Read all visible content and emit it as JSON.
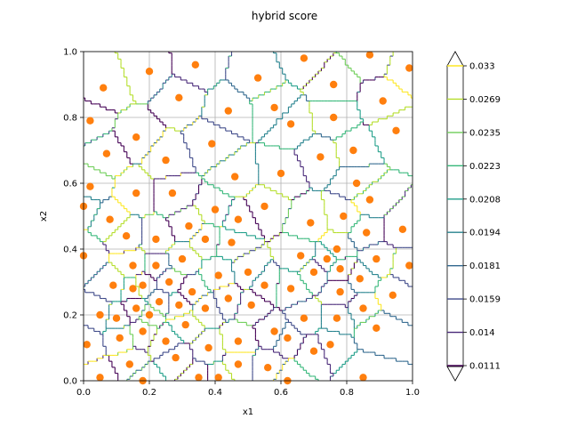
{
  "chart_data": {
    "type": "contour",
    "title": "hybrid score",
    "xlabel": "x1",
    "ylabel": "x2",
    "xlim": [
      0,
      1
    ],
    "ylim": [
      0,
      1
    ],
    "x_ticks": [
      "0.0",
      "0.2",
      "0.4",
      "0.6",
      "0.8",
      "1.0"
    ],
    "y_ticks": [
      "0.0",
      "0.2",
      "0.4",
      "0.6",
      "0.8",
      "1.0"
    ],
    "grid": true,
    "colorbar": {
      "extend": "both",
      "levels": [
        "0.033",
        "0.0269",
        "0.0235",
        "0.0223",
        "0.0208",
        "0.0194",
        "0.0181",
        "0.0159",
        "0.014",
        "0.0111"
      ],
      "colors": [
        "#fde725",
        "#b5de2b",
        "#6ece58",
        "#35b779",
        "#1f9e89",
        "#26828e",
        "#31688e",
        "#3e4989",
        "#482878",
        "#440154"
      ]
    },
    "scatter": {
      "color": "#ff7f0e",
      "points": [
        [
          0.06,
          0.89
        ],
        [
          0.2,
          0.94
        ],
        [
          0.34,
          0.96
        ],
        [
          0.53,
          0.92
        ],
        [
          0.67,
          0.98
        ],
        [
          0.87,
          0.99
        ],
        [
          0.99,
          0.95
        ],
        [
          0.02,
          0.79
        ],
        [
          0.29,
          0.86
        ],
        [
          0.44,
          0.82
        ],
        [
          0.58,
          0.83
        ],
        [
          0.76,
          0.9
        ],
        [
          0.91,
          0.85
        ],
        [
          0.16,
          0.74
        ],
        [
          0.39,
          0.72
        ],
        [
          0.63,
          0.78
        ],
        [
          0.76,
          0.8
        ],
        [
          0.95,
          0.76
        ],
        [
          0.07,
          0.69
        ],
        [
          0.25,
          0.67
        ],
        [
          0.72,
          0.68
        ],
        [
          0.82,
          0.7
        ],
        [
          0.02,
          0.59
        ],
        [
          0.46,
          0.62
        ],
        [
          0.6,
          0.63
        ],
        [
          0.83,
          0.6
        ],
        [
          0.16,
          0.57
        ],
        [
          0.27,
          0.57
        ],
        [
          0.87,
          0.55
        ],
        [
          0.0,
          0.53
        ],
        [
          0.4,
          0.52
        ],
        [
          0.55,
          0.53
        ],
        [
          0.08,
          0.49
        ],
        [
          0.32,
          0.47
        ],
        [
          0.47,
          0.49
        ],
        [
          0.69,
          0.48
        ],
        [
          0.79,
          0.5
        ],
        [
          0.13,
          0.44
        ],
        [
          0.22,
          0.43
        ],
        [
          0.37,
          0.43
        ],
        [
          0.45,
          0.42
        ],
        [
          0.86,
          0.45
        ],
        [
          0.97,
          0.46
        ],
        [
          0.0,
          0.38
        ],
        [
          0.66,
          0.38
        ],
        [
          0.77,
          0.4
        ],
        [
          0.3,
          0.37
        ],
        [
          0.74,
          0.37
        ],
        [
          0.89,
          0.37
        ],
        [
          0.15,
          0.35
        ],
        [
          0.22,
          0.35
        ],
        [
          0.5,
          0.33
        ],
        [
          0.41,
          0.32
        ],
        [
          0.7,
          0.33
        ],
        [
          0.78,
          0.34
        ],
        [
          0.99,
          0.35
        ],
        [
          0.09,
          0.29
        ],
        [
          0.18,
          0.29
        ],
        [
          0.26,
          0.3
        ],
        [
          0.55,
          0.29
        ],
        [
          0.63,
          0.28
        ],
        [
          0.84,
          0.31
        ],
        [
          0.15,
          0.28
        ],
        [
          0.33,
          0.27
        ],
        [
          0.44,
          0.25
        ],
        [
          0.78,
          0.27
        ],
        [
          0.94,
          0.26
        ],
        [
          0.23,
          0.24
        ],
        [
          0.29,
          0.23
        ],
        [
          0.37,
          0.22
        ],
        [
          0.51,
          0.23
        ],
        [
          0.16,
          0.22
        ],
        [
          0.85,
          0.22
        ],
        [
          0.05,
          0.2
        ],
        [
          0.1,
          0.19
        ],
        [
          0.2,
          0.2
        ],
        [
          0.31,
          0.17
        ],
        [
          0.58,
          0.15
        ],
        [
          0.67,
          0.19
        ],
        [
          0.77,
          0.19
        ],
        [
          0.89,
          0.16
        ],
        [
          0.18,
          0.15
        ],
        [
          0.01,
          0.11
        ],
        [
          0.11,
          0.13
        ],
        [
          0.25,
          0.12
        ],
        [
          0.38,
          0.1
        ],
        [
          0.47,
          0.12
        ],
        [
          0.62,
          0.13
        ],
        [
          0.75,
          0.11
        ],
        [
          0.28,
          0.07
        ],
        [
          0.7,
          0.09
        ],
        [
          0.14,
          0.05
        ],
        [
          0.47,
          0.05
        ],
        [
          0.56,
          0.04
        ],
        [
          0.05,
          0.01
        ],
        [
          0.18,
          0.0
        ],
        [
          0.35,
          0.01
        ],
        [
          0.41,
          0.01
        ],
        [
          0.85,
          0.01
        ],
        [
          0.62,
          0.0
        ]
      ]
    }
  }
}
